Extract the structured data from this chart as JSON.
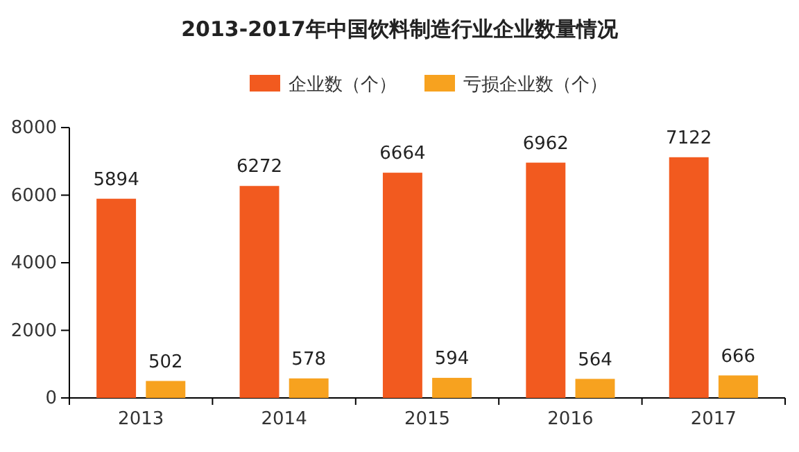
{
  "chart_data": {
    "type": "bar",
    "title": "2013-2017年中国饮料制造行业企业数量情况",
    "categories": [
      "2013",
      "2014",
      "2015",
      "2016",
      "2017"
    ],
    "series": [
      {
        "name": "企业数（个）",
        "color": "#f25a1f",
        "values": [
          5894,
          6272,
          6664,
          6962,
          7122
        ]
      },
      {
        "name": "亏损企业数（个）",
        "color": "#f7a21f",
        "values": [
          502,
          578,
          594,
          564,
          666
        ]
      }
    ],
    "ylim": [
      0,
      8000
    ],
    "yticks": [
      0,
      2000,
      4000,
      6000,
      8000
    ],
    "grid": false,
    "legend": "top",
    "data_labels": true
  }
}
